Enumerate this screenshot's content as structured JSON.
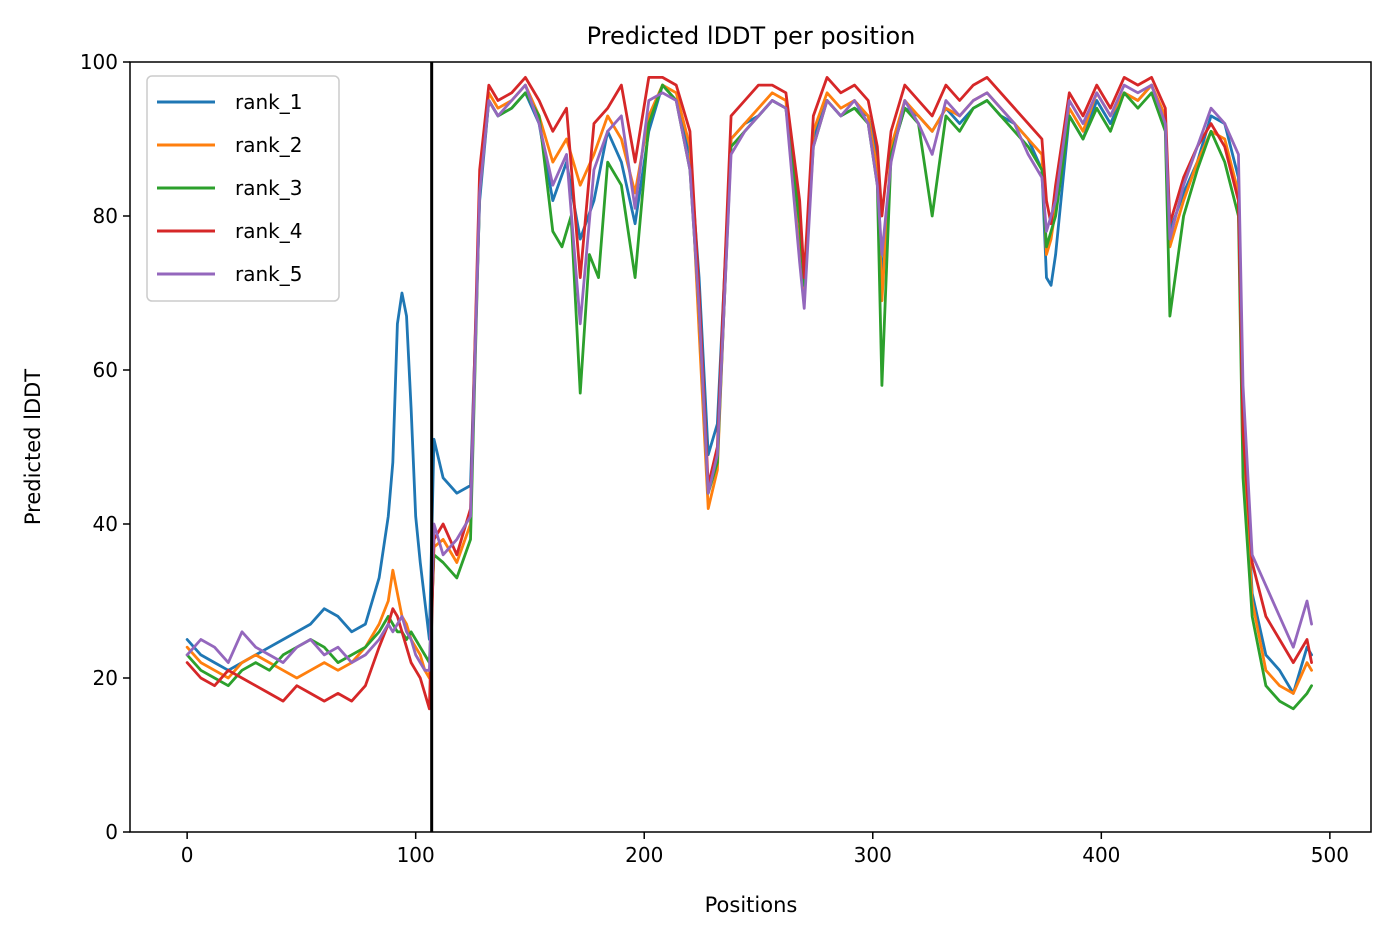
{
  "chart_data": {
    "type": "line",
    "title": "Predicted lDDT per position",
    "xlabel": "Positions",
    "ylabel": "Predicted lDDT",
    "xlim": [
      -25,
      518
    ],
    "ylim": [
      0,
      100
    ],
    "xticks": [
      0,
      100,
      200,
      300,
      400,
      500
    ],
    "yticks": [
      0,
      20,
      40,
      60,
      80,
      100
    ],
    "grid": false,
    "legend_position": "top-left",
    "vline_x": 107,
    "x_step": 6,
    "series": [
      {
        "name": "rank_1",
        "color": "#1f77b4",
        "x": [
          0,
          6,
          12,
          18,
          24,
          30,
          36,
          42,
          48,
          54,
          60,
          66,
          72,
          78,
          84,
          88,
          90,
          92,
          94,
          96,
          98,
          100,
          102,
          104,
          106,
          108,
          112,
          118,
          124,
          128,
          132,
          136,
          142,
          148,
          154,
          160,
          166,
          172,
          178,
          184,
          190,
          196,
          202,
          208,
          214,
          220,
          224,
          228,
          232,
          238,
          244,
          250,
          256,
          262,
          268,
          270,
          274,
          280,
          286,
          292,
          298,
          302,
          304,
          308,
          314,
          320,
          326,
          332,
          338,
          344,
          350,
          356,
          362,
          368,
          374,
          376,
          378,
          380,
          386,
          392,
          398,
          404,
          410,
          416,
          422,
          428,
          430,
          436,
          442,
          448,
          454,
          460,
          462,
          466,
          472,
          478,
          484,
          490,
          492
        ],
        "y": [
          25,
          23,
          22,
          21,
          22,
          23,
          24,
          25,
          26,
          27,
          29,
          28,
          26,
          27,
          33,
          41,
          48,
          66,
          70,
          67,
          55,
          41,
          35,
          30,
          25,
          51,
          46,
          44,
          45,
          82,
          95,
          93,
          94,
          96,
          92,
          82,
          87,
          77,
          82,
          91,
          87,
          79,
          91,
          97,
          95,
          88,
          72,
          49,
          53,
          90,
          92,
          93,
          95,
          94,
          80,
          72,
          90,
          95,
          93,
          94,
          93,
          88,
          71,
          88,
          94,
          93,
          91,
          94,
          92,
          94,
          95,
          93,
          92,
          90,
          86,
          72,
          71,
          75,
          93,
          90,
          95,
          92,
          96,
          95,
          97,
          92,
          78,
          83,
          87,
          93,
          92,
          85,
          53,
          31,
          23,
          21,
          18,
          24,
          23
        ]
      },
      {
        "name": "rank_2",
        "color": "#ff7f0e",
        "x": [
          0,
          6,
          12,
          18,
          24,
          30,
          36,
          42,
          48,
          54,
          60,
          66,
          72,
          78,
          84,
          88,
          90,
          92,
          94,
          96,
          98,
          100,
          102,
          104,
          106,
          108,
          112,
          118,
          124,
          128,
          132,
          136,
          142,
          148,
          154,
          160,
          166,
          172,
          178,
          184,
          190,
          196,
          202,
          208,
          214,
          220,
          224,
          228,
          232,
          238,
          244,
          250,
          256,
          262,
          268,
          270,
          274,
          280,
          286,
          292,
          298,
          302,
          304,
          308,
          314,
          320,
          326,
          332,
          338,
          344,
          350,
          356,
          362,
          368,
          374,
          376,
          378,
          380,
          386,
          392,
          398,
          404,
          410,
          416,
          422,
          428,
          430,
          436,
          442,
          448,
          454,
          460,
          462,
          466,
          472,
          478,
          484,
          490,
          492
        ],
        "y": [
          24,
          22,
          21,
          20,
          22,
          23,
          22,
          21,
          20,
          21,
          22,
          21,
          22,
          24,
          27,
          30,
          34,
          31,
          28,
          27,
          25,
          24,
          23,
          21,
          20,
          37,
          38,
          35,
          40,
          84,
          96,
          94,
          95,
          97,
          93,
          87,
          90,
          84,
          88,
          93,
          90,
          83,
          93,
          97,
          96,
          89,
          65,
          42,
          47,
          90,
          92,
          94,
          96,
          95,
          75,
          70,
          91,
          96,
          94,
          95,
          93,
          86,
          69,
          89,
          95,
          93,
          91,
          94,
          93,
          95,
          96,
          94,
          92,
          90,
          88,
          75,
          77,
          81,
          94,
          91,
          96,
          93,
          96,
          95,
          97,
          93,
          76,
          82,
          87,
          91,
          90,
          83,
          50,
          30,
          21,
          19,
          18,
          22,
          21
        ]
      },
      {
        "name": "rank_3",
        "color": "#2ca02c",
        "x": [
          0,
          6,
          12,
          18,
          24,
          30,
          36,
          42,
          48,
          54,
          60,
          66,
          72,
          78,
          84,
          88,
          90,
          92,
          94,
          96,
          98,
          100,
          102,
          104,
          106,
          108,
          112,
          118,
          124,
          128,
          132,
          136,
          142,
          148,
          154,
          160,
          164,
          168,
          172,
          176,
          180,
          184,
          190,
          196,
          202,
          208,
          214,
          220,
          224,
          228,
          232,
          238,
          244,
          250,
          256,
          262,
          268,
          270,
          274,
          280,
          286,
          292,
          298,
          302,
          304,
          308,
          314,
          320,
          326,
          332,
          338,
          344,
          350,
          356,
          362,
          368,
          374,
          376,
          378,
          380,
          386,
          392,
          398,
          404,
          410,
          416,
          422,
          428,
          430,
          436,
          442,
          448,
          454,
          460,
          462,
          466,
          472,
          478,
          484,
          490,
          492
        ],
        "y": [
          23,
          21,
          20,
          19,
          21,
          22,
          21,
          23,
          24,
          25,
          24,
          22,
          23,
          24,
          26,
          28,
          27,
          26,
          26,
          25,
          26,
          25,
          24,
          23,
          22,
          36,
          35,
          33,
          38,
          83,
          95,
          93,
          94,
          96,
          93,
          78,
          76,
          80,
          57,
          75,
          72,
          87,
          84,
          72,
          92,
          97,
          95,
          86,
          68,
          44,
          48,
          89,
          91,
          93,
          95,
          94,
          79,
          71,
          89,
          95,
          93,
          94,
          92,
          84,
          58,
          88,
          94,
          92,
          80,
          93,
          91,
          94,
          95,
          93,
          91,
          89,
          86,
          76,
          78,
          80,
          93,
          90,
          94,
          91,
          96,
          94,
          96,
          91,
          67,
          80,
          86,
          91,
          87,
          80,
          46,
          28,
          19,
          17,
          16,
          18,
          19
        ]
      },
      {
        "name": "rank_4",
        "color": "#d62728",
        "x": [
          0,
          6,
          12,
          18,
          24,
          30,
          36,
          42,
          48,
          54,
          60,
          66,
          72,
          78,
          84,
          88,
          90,
          92,
          94,
          96,
          98,
          100,
          102,
          104,
          106,
          108,
          112,
          118,
          124,
          128,
          132,
          136,
          142,
          148,
          154,
          160,
          166,
          172,
          178,
          184,
          190,
          196,
          202,
          208,
          214,
          220,
          224,
          228,
          232,
          238,
          244,
          250,
          256,
          262,
          268,
          270,
          274,
          280,
          286,
          292,
          298,
          302,
          304,
          308,
          314,
          320,
          326,
          332,
          338,
          344,
          350,
          356,
          362,
          368,
          374,
          376,
          378,
          380,
          386,
          392,
          398,
          404,
          410,
          416,
          422,
          428,
          430,
          436,
          442,
          448,
          454,
          460,
          462,
          466,
          472,
          478,
          484,
          490,
          492
        ],
        "y": [
          22,
          20,
          19,
          21,
          20,
          19,
          18,
          17,
          19,
          18,
          17,
          18,
          17,
          19,
          24,
          27,
          29,
          28,
          26,
          24,
          22,
          21,
          20,
          18,
          16,
          38,
          40,
          36,
          42,
          86,
          97,
          95,
          96,
          98,
          95,
          91,
          94,
          72,
          92,
          94,
          97,
          87,
          98,
          98,
          97,
          91,
          70,
          45,
          50,
          93,
          95,
          97,
          97,
          96,
          82,
          72,
          93,
          98,
          96,
          97,
          95,
          89,
          80,
          91,
          97,
          95,
          93,
          97,
          95,
          97,
          98,
          96,
          94,
          92,
          90,
          82,
          79,
          84,
          96,
          93,
          97,
          94,
          98,
          97,
          98,
          94,
          79,
          85,
          89,
          92,
          89,
          82,
          52,
          35,
          28,
          25,
          22,
          25,
          22
        ]
      },
      {
        "name": "rank_5",
        "color": "#9467bd",
        "x": [
          0,
          6,
          12,
          18,
          24,
          30,
          36,
          42,
          48,
          54,
          60,
          66,
          72,
          78,
          84,
          88,
          90,
          92,
          94,
          96,
          98,
          100,
          102,
          104,
          106,
          108,
          112,
          118,
          124,
          128,
          132,
          136,
          142,
          148,
          154,
          160,
          166,
          172,
          178,
          184,
          190,
          196,
          202,
          208,
          214,
          220,
          224,
          228,
          232,
          238,
          244,
          250,
          256,
          262,
          268,
          270,
          274,
          280,
          286,
          292,
          298,
          302,
          304,
          308,
          314,
          320,
          326,
          332,
          338,
          344,
          350,
          356,
          362,
          368,
          374,
          376,
          378,
          380,
          386,
          392,
          398,
          404,
          410,
          416,
          422,
          428,
          430,
          436,
          442,
          448,
          454,
          460,
          462,
          466,
          472,
          478,
          484,
          490,
          492
        ],
        "y": [
          23,
          25,
          24,
          22,
          26,
          24,
          23,
          22,
          24,
          25,
          23,
          24,
          22,
          23,
          25,
          27,
          26,
          27,
          28,
          26,
          25,
          23,
          22,
          21,
          21,
          40,
          36,
          38,
          41,
          83,
          95,
          93,
          95,
          97,
          92,
          84,
          88,
          66,
          86,
          91,
          93,
          81,
          95,
          96,
          95,
          86,
          68,
          44,
          49,
          88,
          91,
          93,
          95,
          94,
          74,
          68,
          89,
          95,
          93,
          95,
          92,
          84,
          75,
          87,
          95,
          92,
          88,
          95,
          93,
          95,
          96,
          94,
          92,
          88,
          85,
          78,
          80,
          82,
          95,
          92,
          96,
          93,
          97,
          96,
          97,
          92,
          77,
          84,
          89,
          94,
          92,
          88,
          58,
          36,
          32,
          28,
          24,
          30,
          27
        ]
      }
    ]
  }
}
